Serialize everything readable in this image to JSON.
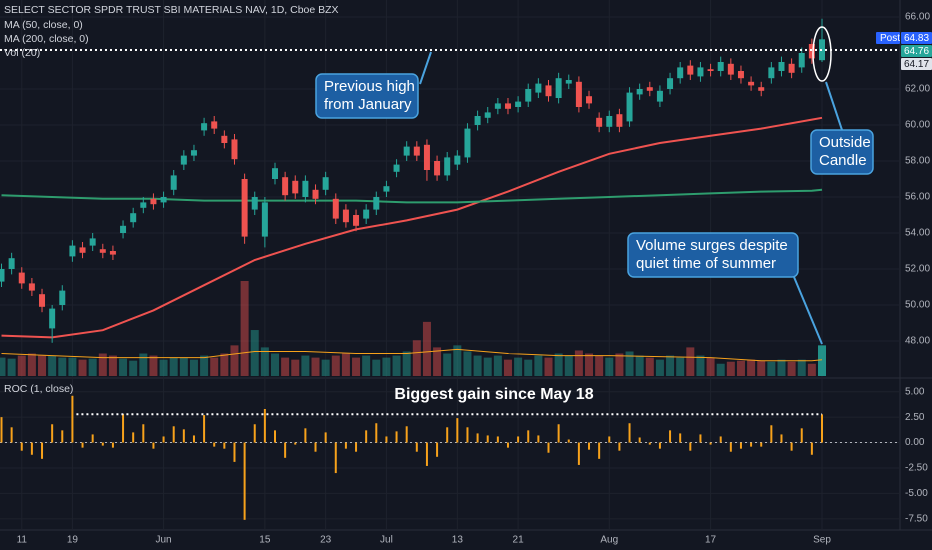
{
  "chart_data": {
    "type": "candlestick",
    "title": "SELECT SECTOR SPDR TRUST SBI MATERIALS NAV, 1D, Cboe BZX",
    "indicator_labels": [
      "MA (50, close, 0)",
      "MA (200, close, 0)"
    ],
    "categories": [
      null,
      null,
      "11",
      null,
      null,
      null,
      null,
      "19",
      null,
      null,
      null,
      null,
      null,
      null,
      null,
      null,
      "Jun",
      null,
      null,
      null,
      null,
      null,
      null,
      null,
      null,
      null,
      "15",
      null,
      null,
      null,
      null,
      null,
      "23",
      null,
      null,
      null,
      null,
      null,
      "Jul",
      null,
      null,
      null,
      null,
      null,
      null,
      "13",
      null,
      null,
      null,
      null,
      null,
      "21",
      null,
      null,
      null,
      null,
      null,
      null,
      null,
      null,
      "Aug",
      null,
      null,
      null,
      null,
      null,
      null,
      null,
      null,
      null,
      "17",
      null,
      null,
      null,
      null,
      null,
      null,
      null,
      null,
      null,
      null,
      "Sep"
    ],
    "ohlc": [
      [
        51.3,
        52.3,
        51.0,
        52.0
      ],
      [
        52.0,
        52.9,
        51.7,
        52.6
      ],
      [
        51.8,
        52.1,
        50.9,
        51.2
      ],
      [
        51.2,
        51.5,
        50.5,
        50.8
      ],
      [
        50.6,
        50.9,
        49.6,
        49.9
      ],
      [
        48.7,
        50.0,
        47.9,
        49.8
      ],
      [
        50.0,
        51.1,
        49.7,
        50.8
      ],
      [
        52.7,
        53.6,
        52.4,
        53.3
      ],
      [
        53.2,
        53.5,
        52.6,
        52.9
      ],
      [
        53.3,
        54.0,
        53.0,
        53.7
      ],
      [
        53.1,
        53.4,
        52.6,
        52.9
      ],
      [
        53.0,
        53.3,
        52.5,
        52.8
      ],
      [
        54.0,
        54.7,
        53.7,
        54.4
      ],
      [
        54.6,
        55.4,
        54.3,
        55.1
      ],
      [
        55.4,
        56.0,
        55.1,
        55.7
      ],
      [
        55.9,
        56.2,
        55.3,
        55.6
      ],
      [
        55.7,
        56.3,
        55.4,
        56.0
      ],
      [
        56.4,
        57.5,
        56.1,
        57.2
      ],
      [
        57.8,
        58.6,
        57.5,
        58.3
      ],
      [
        58.3,
        58.9,
        58.0,
        58.6
      ],
      [
        59.7,
        60.4,
        59.4,
        60.1
      ],
      [
        60.2,
        60.5,
        59.5,
        59.8
      ],
      [
        59.4,
        59.7,
        58.7,
        59.0
      ],
      [
        59.2,
        59.5,
        57.8,
        58.1
      ],
      [
        57.0,
        57.3,
        53.4,
        53.8
      ],
      [
        55.3,
        56.3,
        55.0,
        56.0
      ],
      [
        53.8,
        56.0,
        53.2,
        55.7
      ],
      [
        57.0,
        57.9,
        56.7,
        57.6
      ],
      [
        57.1,
        57.4,
        55.8,
        56.1
      ],
      [
        56.9,
        57.2,
        55.9,
        56.2
      ],
      [
        56.0,
        57.2,
        55.7,
        56.9
      ],
      [
        56.4,
        56.7,
        55.6,
        55.9
      ],
      [
        56.4,
        57.4,
        56.1,
        57.1
      ],
      [
        55.9,
        56.2,
        54.5,
        54.8
      ],
      [
        55.3,
        55.6,
        54.3,
        54.6
      ],
      [
        55.0,
        55.3,
        54.1,
        54.4
      ],
      [
        54.8,
        55.6,
        54.5,
        55.3
      ],
      [
        55.3,
        56.3,
        55.0,
        56.0
      ],
      [
        56.3,
        56.9,
        56.0,
        56.6
      ],
      [
        57.4,
        58.1,
        57.1,
        57.8
      ],
      [
        58.3,
        59.1,
        58.0,
        58.8
      ],
      [
        58.8,
        59.1,
        58.0,
        58.3
      ],
      [
        58.9,
        59.2,
        56.9,
        57.5
      ],
      [
        58.0,
        58.3,
        56.9,
        57.2
      ],
      [
        57.2,
        58.5,
        56.9,
        58.2
      ],
      [
        57.8,
        58.6,
        57.5,
        58.3
      ],
      [
        58.2,
        60.1,
        57.9,
        59.8
      ],
      [
        60.0,
        60.8,
        59.7,
        60.5
      ],
      [
        60.4,
        61.0,
        60.1,
        60.7
      ],
      [
        60.9,
        61.5,
        60.6,
        61.2
      ],
      [
        61.2,
        61.5,
        60.6,
        60.9
      ],
      [
        61.0,
        61.6,
        60.7,
        61.3
      ],
      [
        61.3,
        62.3,
        61.0,
        62.0
      ],
      [
        61.8,
        62.6,
        61.5,
        62.3
      ],
      [
        62.2,
        62.5,
        61.3,
        61.6
      ],
      [
        61.5,
        62.9,
        61.2,
        62.6
      ],
      [
        62.3,
        62.8,
        62.0,
        62.5
      ],
      [
        62.4,
        62.7,
        60.7,
        61.0
      ],
      [
        61.6,
        61.9,
        60.9,
        61.2
      ],
      [
        60.4,
        60.7,
        59.6,
        59.9
      ],
      [
        59.9,
        60.8,
        59.6,
        60.5
      ],
      [
        60.6,
        60.9,
        59.6,
        59.9
      ],
      [
        60.2,
        62.1,
        59.9,
        61.8
      ],
      [
        61.7,
        62.3,
        61.4,
        62.0
      ],
      [
        62.1,
        62.4,
        61.6,
        61.9
      ],
      [
        61.3,
        62.2,
        61.0,
        61.9
      ],
      [
        62.0,
        62.9,
        61.7,
        62.6
      ],
      [
        62.6,
        63.5,
        62.3,
        63.2
      ],
      [
        63.3,
        63.6,
        62.5,
        62.8
      ],
      [
        62.7,
        63.5,
        62.4,
        63.2
      ],
      [
        63.1,
        63.4,
        62.7,
        63.0
      ],
      [
        63.0,
        63.8,
        62.7,
        63.5
      ],
      [
        63.4,
        63.7,
        62.5,
        62.8
      ],
      [
        63.0,
        63.3,
        62.3,
        62.6
      ],
      [
        62.4,
        62.7,
        61.9,
        62.2
      ],
      [
        62.1,
        62.4,
        61.6,
        61.9
      ],
      [
        62.6,
        63.5,
        62.3,
        63.2
      ],
      [
        63.0,
        63.8,
        62.7,
        63.5
      ],
      [
        63.4,
        63.7,
        62.6,
        62.9
      ],
      [
        63.2,
        64.3,
        62.9,
        64.0
      ],
      [
        64.5,
        64.8,
        63.4,
        63.7
      ],
      [
        63.6,
        65.9,
        63.5,
        64.76
      ]
    ],
    "up_color": "#26a69a",
    "down_color": "#ef5350",
    "ma_series": [
      {
        "color": "#ef5350",
        "x": [
          0,
          5,
          10,
          15,
          20,
          25,
          30,
          35,
          40,
          45,
          50,
          55,
          60,
          65,
          70,
          75,
          80,
          81
        ],
        "values": [
          48.3,
          48.2,
          48.6,
          49.7,
          51.1,
          52.5,
          53.4,
          54.2,
          54.7,
          55.3,
          56.3,
          57.4,
          58.4,
          59.0,
          59.4,
          59.8,
          60.3,
          60.4
        ]
      },
      {
        "color": "#2e9d6e",
        "x": [
          0,
          5,
          10,
          15,
          20,
          25,
          30,
          35,
          40,
          45,
          50,
          55,
          60,
          65,
          70,
          75,
          80,
          81
        ],
        "values": [
          56.1,
          56.0,
          55.9,
          55.9,
          55.8,
          55.8,
          55.8,
          55.8,
          55.7,
          55.7,
          55.8,
          55.9,
          56.0,
          56.1,
          56.2,
          56.3,
          56.35,
          56.4
        ]
      }
    ],
    "ylim": [
      46,
      67
    ],
    "yticks": [
      {
        "value": 66,
        "label": "66.00"
      },
      {
        "value": 62,
        "label": "62.00"
      },
      {
        "value": 60,
        "label": "60.00"
      },
      {
        "value": 58,
        "label": "58.00"
      },
      {
        "value": 56,
        "label": "56.00"
      },
      {
        "value": 54,
        "label": "54.00"
      },
      {
        "value": 52,
        "label": "52.00"
      },
      {
        "value": 50,
        "label": "50.00"
      },
      {
        "value": 48,
        "label": "48.00"
      }
    ],
    "grid": true,
    "price_labels": [
      {
        "tag": "Post",
        "value": 64.83,
        "color": "#2962ff"
      },
      {
        "value": 64.76,
        "color": "#26a69a"
      },
      {
        "value": 64.17,
        "color": "#e0e3eb"
      }
    ],
    "volume": {
      "label": "Vol (20)",
      "values": [
        18,
        17,
        20,
        22,
        20,
        20,
        18,
        18,
        16,
        17,
        22,
        20,
        17,
        15,
        22,
        20,
        16,
        18,
        18,
        16,
        20,
        18,
        22,
        30,
        93,
        45,
        28,
        22,
        18,
        16,
        20,
        18,
        16,
        20,
        22,
        18,
        20,
        16,
        18,
        20,
        24,
        35,
        53,
        28,
        22,
        30,
        24,
        20,
        18,
        20,
        16,
        18,
        16,
        20,
        18,
        22,
        20,
        25,
        22,
        20,
        18,
        22,
        24,
        20,
        18,
        16,
        20,
        18,
        28,
        20,
        18,
        12,
        14,
        15,
        16,
        15,
        14,
        16,
        14,
        16,
        12,
        30
      ],
      "ma": {
        "color": "#f7a21b",
        "x": [
          0,
          5,
          10,
          15,
          20,
          25,
          30,
          35,
          40,
          45,
          50,
          55,
          60,
          65,
          70,
          75,
          80,
          81
        ],
        "values": [
          22,
          20,
          18,
          18,
          18,
          24,
          24,
          22,
          22,
          26,
          22,
          20,
          20,
          19,
          18,
          15,
          15,
          16
        ]
      }
    },
    "roc": {
      "label": "ROC (1, close)",
      "color": "#f7a21b",
      "values": [
        2.5,
        1.5,
        -0.8,
        -1.2,
        -1.6,
        1.8,
        1.2,
        4.6,
        -0.5,
        0.8,
        -0.3,
        -0.5,
        2.8,
        1.0,
        1.8,
        -0.6,
        0.6,
        1.6,
        1.3,
        0.7,
        2.7,
        -0.4,
        -0.6,
        -1.9,
        -7.6,
        1.8,
        3.3,
        1.2,
        -1.5,
        -0.2,
        1.4,
        -0.9,
        1.0,
        -3.0,
        -0.6,
        -0.9,
        1.2,
        1.9,
        0.6,
        1.1,
        1.6,
        -0.9,
        -2.3,
        -1.4,
        1.5,
        2.4,
        1.5,
        0.9,
        0.7,
        0.6,
        -0.5,
        0.6,
        1.2,
        0.7,
        -1.0,
        1.8,
        0.3,
        -2.2,
        -0.7,
        -1.6,
        0.6,
        -0.8,
        1.9,
        0.5,
        -0.2,
        -0.6,
        1.2,
        0.9,
        -0.8,
        0.8,
        -0.2,
        0.6,
        -0.9,
        -0.6,
        -0.4,
        -0.4,
        1.7,
        0.8,
        -0.8,
        1.4,
        -1.2,
        2.78
      ],
      "ylim": [
        -8.5,
        6.25
      ],
      "yticks": [
        {
          "value": 5,
          "label": "5.00"
        },
        {
          "value": 2.5,
          "label": "2.50"
        },
        {
          "value": 0,
          "label": "0.00"
        },
        {
          "value": -2.5,
          "label": "-2.50"
        },
        {
          "value": -5,
          "label": "-5.00"
        },
        {
          "value": -7.5,
          "label": "-7.50"
        }
      ],
      "reference_from": 7,
      "annotation": "Biggest gain since May 18"
    },
    "annotations": [
      {
        "lines": [
          "Previous high",
          "from January"
        ]
      },
      {
        "lines": [
          "Outside",
          "Candle"
        ]
      },
      {
        "lines": [
          "Volume surges despite",
          "quiet time of summer"
        ]
      }
    ]
  }
}
